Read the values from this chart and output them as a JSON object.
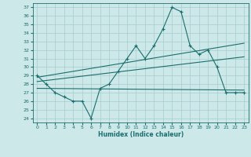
{
  "xlabel": "Humidex (Indice chaleur)",
  "xlim": [
    -0.5,
    23.5
  ],
  "ylim": [
    23.5,
    37.5
  ],
  "yticks": [
    24,
    25,
    26,
    27,
    28,
    29,
    30,
    31,
    32,
    33,
    34,
    35,
    36,
    37
  ],
  "xticks": [
    0,
    1,
    2,
    3,
    4,
    5,
    6,
    7,
    8,
    9,
    10,
    11,
    12,
    13,
    14,
    15,
    16,
    17,
    18,
    19,
    20,
    21,
    22,
    23
  ],
  "bg_color": "#cde8e8",
  "grid_color": "#a8cccc",
  "line_color": "#1a6e6e",
  "main_line_y": [
    29,
    28,
    27,
    26.5,
    26,
    26,
    24,
    27.5,
    28,
    29.5,
    31,
    32.5,
    31,
    32.5,
    34.5,
    37,
    36.5,
    32.5,
    31.5,
    32,
    30,
    27,
    27,
    27
  ],
  "trend_line1": [
    27.5,
    27.3
  ],
  "trend_line2": [
    28.3,
    31.2
  ],
  "trend_line3": [
    28.8,
    32.8
  ]
}
